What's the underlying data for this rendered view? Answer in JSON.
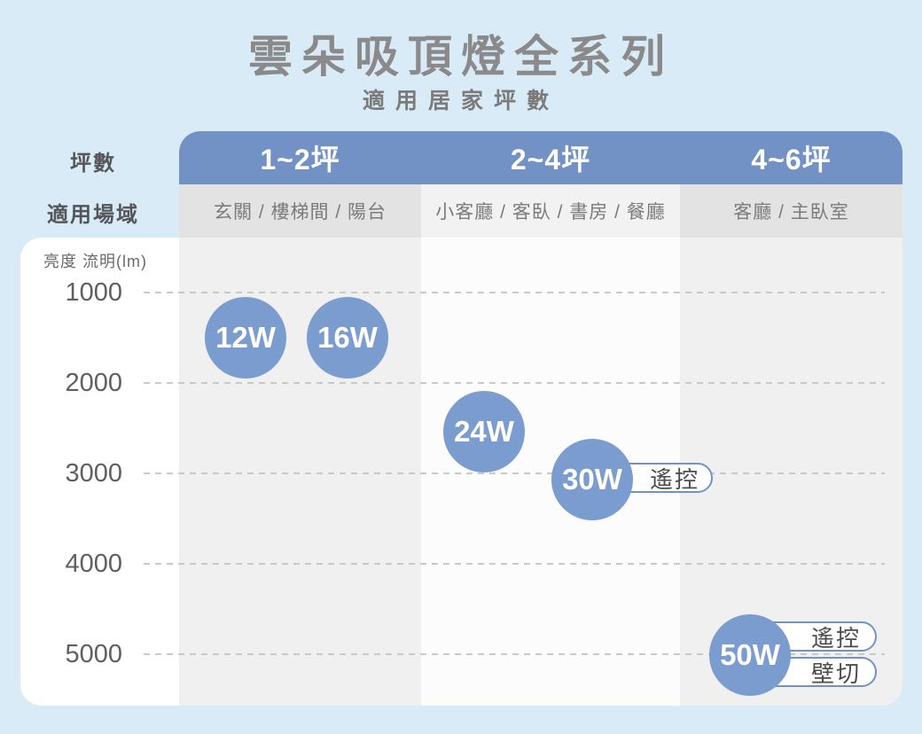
{
  "page": {
    "title": "雲朵吸頂燈全系列",
    "subtitle": "適用居家坪數"
  },
  "table": {
    "size_row_label": "坪數",
    "venue_row_label": "適用場域",
    "columns": [
      {
        "size": "1~2坪",
        "venues": "玄關 / 樓梯間 / 陽台"
      },
      {
        "size": "2~4坪",
        "venues": "小客廳 / 客臥 / 書房 / 餐廳"
      },
      {
        "size": "4~6坪",
        "venues": "客廳 / 主臥室"
      }
    ]
  },
  "axis": {
    "label": "亮度 流明(lm)",
    "ticks": [
      "1000",
      "2000",
      "3000",
      "4000",
      "5000"
    ]
  },
  "products": [
    {
      "label": "12W",
      "tags": []
    },
    {
      "label": "16W",
      "tags": []
    },
    {
      "label": "24W",
      "tags": []
    },
    {
      "label": "30W",
      "tags": [
        "遙控"
      ]
    },
    {
      "label": "50W",
      "tags": [
        "遙控",
        "壁切"
      ]
    }
  ],
  "colors": {
    "page_bg": "#d8ebf6",
    "header_blue": "#7292c5",
    "bubble_blue": "#7b9cce",
    "venue_cell_gray": "#e3e3e4",
    "column_gray": "#f0f0f1",
    "grid_dash": "#c9c9c9"
  },
  "chart_data": {
    "type": "scatter",
    "title": "雲朵吸頂燈全系列",
    "subtitle": "適用居家坪數",
    "ylabel": "亮度 流明(lm)",
    "y_ticks": [
      1000,
      2000,
      3000,
      4000,
      5000
    ],
    "ylim": [
      500,
      5500
    ],
    "y_axis_direction": "values increase downward",
    "grid": "horizontal dashed",
    "x_categories": [
      "1~2坪",
      "2~4坪",
      "4~6坪"
    ],
    "x_category_venues": [
      "玄關 / 樓梯間 / 陽台",
      "小客廳 / 客臥 / 書房 / 餐廳",
      "客廳 / 主臥室"
    ],
    "points": [
      {
        "label": "12W",
        "category": "1~2坪",
        "lumens": 1500,
        "tags": []
      },
      {
        "label": "16W",
        "category": "1~2坪",
        "lumens": 1500,
        "tags": []
      },
      {
        "label": "24W",
        "category": "2~4坪",
        "lumens": 2550,
        "tags": []
      },
      {
        "label": "30W",
        "category": "2~4坪",
        "lumens": 3050,
        "tags": [
          "遙控"
        ]
      },
      {
        "label": "50W",
        "category": "4~6坪",
        "lumens": 5000,
        "tags": [
          "遙控",
          "壁切"
        ]
      }
    ]
  }
}
